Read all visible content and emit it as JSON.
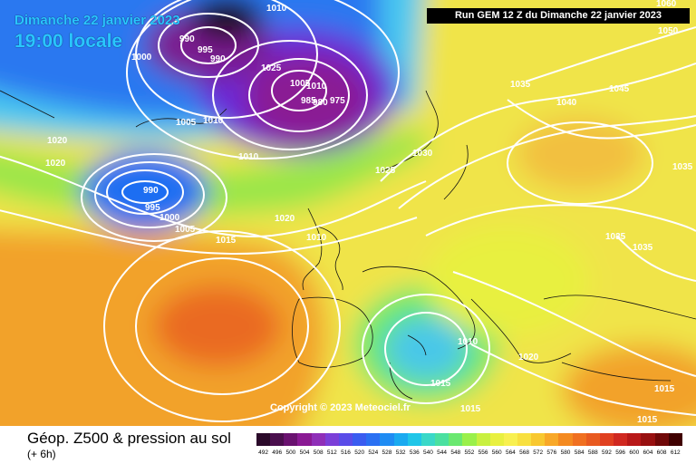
{
  "header": {
    "date": "Dimanche 22 janvier 2023",
    "time": "19:00 locale",
    "run": "Run GEM 12 Z du Dimanche 22 janvier 2023"
  },
  "copyright": "Copyright © 2023 Meteociel.fr",
  "footer": {
    "title": "Géop. Z500 & pression au sol",
    "subtitle": "(+ 6h)"
  },
  "legend": {
    "values": [
      "492",
      "496",
      "500",
      "504",
      "508",
      "512",
      "516",
      "520",
      "524",
      "528",
      "532",
      "536",
      "540",
      "544",
      "548",
      "552",
      "556",
      "560",
      "564",
      "568",
      "572",
      "576",
      "580",
      "584",
      "588",
      "592",
      "596",
      "600",
      "604",
      "608",
      "612"
    ],
    "colors": [
      "#2b0a2a",
      "#4a0f4d",
      "#6a1270",
      "#8a1a94",
      "#8f2fb8",
      "#7b3fd8",
      "#5a4ce8",
      "#3a5cf0",
      "#2a70f2",
      "#1f8cf3",
      "#1aaaf0",
      "#20c6e8",
      "#3ad8c8",
      "#4ae0a0",
      "#6ae870",
      "#9af04a",
      "#c8f040",
      "#e8f040",
      "#f8f050",
      "#f8e040",
      "#f8c830",
      "#f8a828",
      "#f48a20",
      "#f07020",
      "#e85a20",
      "#e04020",
      "#d02820",
      "#b81818",
      "#981010",
      "#700808",
      "#400000"
    ]
  },
  "isobar_labels": {
    "l_990_a": "990",
    "l_995_a": "995",
    "l_990_b": "990",
    "l_1000_a": "1000",
    "l_1010_top": "1010",
    "l_1025_a": "1025",
    "l_1005_a": "1005",
    "l_1010_a": "1010",
    "l_985": "985",
    "l_980": "980",
    "l_975": "975",
    "l_1005_b": "1005",
    "l_1010_b": "1010",
    "l_1020_a": "1020",
    "l_1020_b": "1020",
    "l_990_c": "990",
    "l_995_b": "995",
    "l_1000_b": "1000",
    "l_1005_c": "1005",
    "l_1015_a": "1015",
    "l_1020_c": "1020",
    "l_1010_c": "1010",
    "l_1025_b": "1025",
    "l_1030": "1030",
    "l_1035_a": "1035",
    "l_1040": "1040",
    "l_1045": "1045",
    "l_1050": "1050",
    "l_1060": "1060",
    "l_1035_b": "1035",
    "l_1035_c": "1035",
    "l_1035_d": "1035",
    "l_1010_d": "1010",
    "l_1015_b": "1015",
    "l_1020_d": "1020",
    "l_1015_c": "1015",
    "l_1015_d": "1015",
    "l_1015_e": "1015",
    "l_1010_e": "1010"
  }
}
